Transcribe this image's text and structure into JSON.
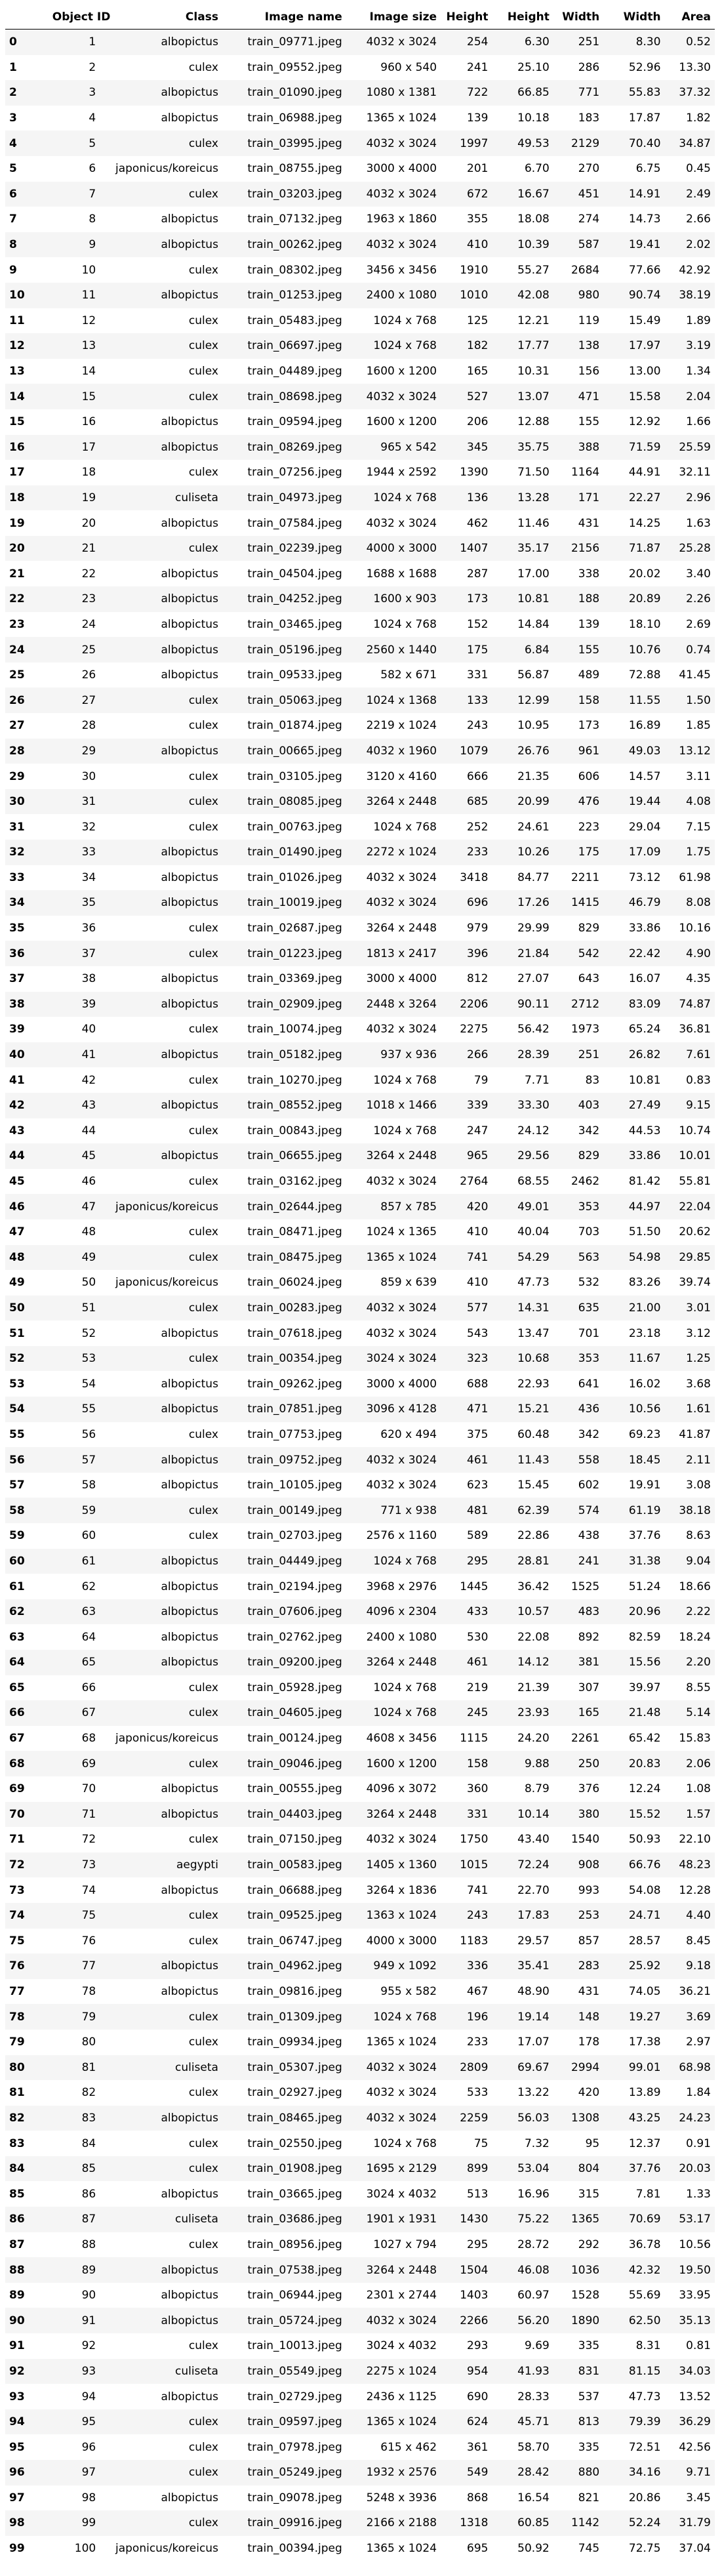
{
  "columns": [
    "",
    "Object ID",
    "Class",
    "Image name",
    "Image size",
    "Height",
    "Height",
    "Width",
    "Width",
    "Area"
  ],
  "rows": [
    [
      "0",
      "1",
      "albopictus",
      "train_09771.jpeg",
      "4032 x 3024",
      "254",
      "6.30",
      "251",
      "8.30",
      "0.52"
    ],
    [
      "1",
      "2",
      "culex",
      "train_09552.jpeg",
      "960 x 540",
      "241",
      "25.10",
      "286",
      "52.96",
      "13.30"
    ],
    [
      "2",
      "3",
      "albopictus",
      "train_01090.jpeg",
      "1080 x 1381",
      "722",
      "66.85",
      "771",
      "55.83",
      "37.32"
    ],
    [
      "3",
      "4",
      "albopictus",
      "train_06988.jpeg",
      "1365 x 1024",
      "139",
      "10.18",
      "183",
      "17.87",
      "1.82"
    ],
    [
      "4",
      "5",
      "culex",
      "train_03995.jpeg",
      "4032 x 3024",
      "1997",
      "49.53",
      "2129",
      "70.40",
      "34.87"
    ],
    [
      "5",
      "6",
      "japonicus/koreicus",
      "train_08755.jpeg",
      "3000 x 4000",
      "201",
      "6.70",
      "270",
      "6.75",
      "0.45"
    ],
    [
      "6",
      "7",
      "culex",
      "train_03203.jpeg",
      "4032 x 3024",
      "672",
      "16.67",
      "451",
      "14.91",
      "2.49"
    ],
    [
      "7",
      "8",
      "albopictus",
      "train_07132.jpeg",
      "1963 x 1860",
      "355",
      "18.08",
      "274",
      "14.73",
      "2.66"
    ],
    [
      "8",
      "9",
      "albopictus",
      "train_00262.jpeg",
      "4032 x 3024",
      "410",
      "10.39",
      "587",
      "19.41",
      "2.02"
    ],
    [
      "9",
      "10",
      "culex",
      "train_08302.jpeg",
      "3456 x 3456",
      "1910",
      "55.27",
      "2684",
      "77.66",
      "42.92"
    ],
    [
      "10",
      "11",
      "albopictus",
      "train_01253.jpeg",
      "2400 x 1080",
      "1010",
      "42.08",
      "980",
      "90.74",
      "38.19"
    ],
    [
      "11",
      "12",
      "culex",
      "train_05483.jpeg",
      "1024 x 768",
      "125",
      "12.21",
      "119",
      "15.49",
      "1.89"
    ],
    [
      "12",
      "13",
      "culex",
      "train_06697.jpeg",
      "1024 x 768",
      "182",
      "17.77",
      "138",
      "17.97",
      "3.19"
    ],
    [
      "13",
      "14",
      "culex",
      "train_04489.jpeg",
      "1600 x 1200",
      "165",
      "10.31",
      "156",
      "13.00",
      "1.34"
    ],
    [
      "14",
      "15",
      "culex",
      "train_08698.jpeg",
      "4032 x 3024",
      "527",
      "13.07",
      "471",
      "15.58",
      "2.04"
    ],
    [
      "15",
      "16",
      "albopictus",
      "train_09594.jpeg",
      "1600 x 1200",
      "206",
      "12.88",
      "155",
      "12.92",
      "1.66"
    ],
    [
      "16",
      "17",
      "albopictus",
      "train_08269.jpeg",
      "965 x 542",
      "345",
      "35.75",
      "388",
      "71.59",
      "25.59"
    ],
    [
      "17",
      "18",
      "culex",
      "train_07256.jpeg",
      "1944 x 2592",
      "1390",
      "71.50",
      "1164",
      "44.91",
      "32.11"
    ],
    [
      "18",
      "19",
      "culiseta",
      "train_04973.jpeg",
      "1024 x 768",
      "136",
      "13.28",
      "171",
      "22.27",
      "2.96"
    ],
    [
      "19",
      "20",
      "albopictus",
      "train_07584.jpeg",
      "4032 x 3024",
      "462",
      "11.46",
      "431",
      "14.25",
      "1.63"
    ],
    [
      "20",
      "21",
      "culex",
      "train_02239.jpeg",
      "4000 x 3000",
      "1407",
      "35.17",
      "2156",
      "71.87",
      "25.28"
    ],
    [
      "21",
      "22",
      "albopictus",
      "train_04504.jpeg",
      "1688 x 1688",
      "287",
      "17.00",
      "338",
      "20.02",
      "3.40"
    ],
    [
      "22",
      "23",
      "albopictus",
      "train_04252.jpeg",
      "1600 x 903",
      "173",
      "10.81",
      "188",
      "20.89",
      "2.26"
    ],
    [
      "23",
      "24",
      "albopictus",
      "train_03465.jpeg",
      "1024 x 768",
      "152",
      "14.84",
      "139",
      "18.10",
      "2.69"
    ],
    [
      "24",
      "25",
      "albopictus",
      "train_05196.jpeg",
      "2560 x 1440",
      "175",
      "6.84",
      "155",
      "10.76",
      "0.74"
    ],
    [
      "25",
      "26",
      "albopictus",
      "train_09533.jpeg",
      "582 x 671",
      "331",
      "56.87",
      "489",
      "72.88",
      "41.45"
    ],
    [
      "26",
      "27",
      "culex",
      "train_05063.jpeg",
      "1024 x 1368",
      "133",
      "12.99",
      "158",
      "11.55",
      "1.50"
    ],
    [
      "27",
      "28",
      "culex",
      "train_01874.jpeg",
      "2219 x 1024",
      "243",
      "10.95",
      "173",
      "16.89",
      "1.85"
    ],
    [
      "28",
      "29",
      "albopictus",
      "train_00665.jpeg",
      "4032 x 1960",
      "1079",
      "26.76",
      "961",
      "49.03",
      "13.12"
    ],
    [
      "29",
      "30",
      "culex",
      "train_03105.jpeg",
      "3120 x 4160",
      "666",
      "21.35",
      "606",
      "14.57",
      "3.11"
    ],
    [
      "30",
      "31",
      "culex",
      "train_08085.jpeg",
      "3264 x 2448",
      "685",
      "20.99",
      "476",
      "19.44",
      "4.08"
    ],
    [
      "31",
      "32",
      "culex",
      "train_00763.jpeg",
      "1024 x 768",
      "252",
      "24.61",
      "223",
      "29.04",
      "7.15"
    ],
    [
      "32",
      "33",
      "albopictus",
      "train_01490.jpeg",
      "2272 x 1024",
      "233",
      "10.26",
      "175",
      "17.09",
      "1.75"
    ],
    [
      "33",
      "34",
      "albopictus",
      "train_01026.jpeg",
      "4032 x 3024",
      "3418",
      "84.77",
      "2211",
      "73.12",
      "61.98"
    ],
    [
      "34",
      "35",
      "albopictus",
      "train_10019.jpeg",
      "4032 x 3024",
      "696",
      "17.26",
      "1415",
      "46.79",
      "8.08"
    ],
    [
      "35",
      "36",
      "culex",
      "train_02687.jpeg",
      "3264 x 2448",
      "979",
      "29.99",
      "829",
      "33.86",
      "10.16"
    ],
    [
      "36",
      "37",
      "culex",
      "train_01223.jpeg",
      "1813 x 2417",
      "396",
      "21.84",
      "542",
      "22.42",
      "4.90"
    ],
    [
      "37",
      "38",
      "albopictus",
      "train_03369.jpeg",
      "3000 x 4000",
      "812",
      "27.07",
      "643",
      "16.07",
      "4.35"
    ],
    [
      "38",
      "39",
      "albopictus",
      "train_02909.jpeg",
      "2448 x 3264",
      "2206",
      "90.11",
      "2712",
      "83.09",
      "74.87"
    ],
    [
      "39",
      "40",
      "culex",
      "train_10074.jpeg",
      "4032 x 3024",
      "2275",
      "56.42",
      "1973",
      "65.24",
      "36.81"
    ],
    [
      "40",
      "41",
      "albopictus",
      "train_05182.jpeg",
      "937 x 936",
      "266",
      "28.39",
      "251",
      "26.82",
      "7.61"
    ],
    [
      "41",
      "42",
      "culex",
      "train_10270.jpeg",
      "1024 x 768",
      "79",
      "7.71",
      "83",
      "10.81",
      "0.83"
    ],
    [
      "42",
      "43",
      "albopictus",
      "train_08552.jpeg",
      "1018 x 1466",
      "339",
      "33.30",
      "403",
      "27.49",
      "9.15"
    ],
    [
      "43",
      "44",
      "culex",
      "train_00843.jpeg",
      "1024 x 768",
      "247",
      "24.12",
      "342",
      "44.53",
      "10.74"
    ],
    [
      "44",
      "45",
      "albopictus",
      "train_06655.jpeg",
      "3264 x 2448",
      "965",
      "29.56",
      "829",
      "33.86",
      "10.01"
    ],
    [
      "45",
      "46",
      "culex",
      "train_03162.jpeg",
      "4032 x 3024",
      "2764",
      "68.55",
      "2462",
      "81.42",
      "55.81"
    ],
    [
      "46",
      "47",
      "japonicus/koreicus",
      "train_02644.jpeg",
      "857 x 785",
      "420",
      "49.01",
      "353",
      "44.97",
      "22.04"
    ],
    [
      "47",
      "48",
      "culex",
      "train_08471.jpeg",
      "1024 x 1365",
      "410",
      "40.04",
      "703",
      "51.50",
      "20.62"
    ],
    [
      "48",
      "49",
      "culex",
      "train_08475.jpeg",
      "1365 x 1024",
      "741",
      "54.29",
      "563",
      "54.98",
      "29.85"
    ],
    [
      "49",
      "50",
      "japonicus/koreicus",
      "train_06024.jpeg",
      "859 x 639",
      "410",
      "47.73",
      "532",
      "83.26",
      "39.74"
    ],
    [
      "50",
      "51",
      "culex",
      "train_00283.jpeg",
      "4032 x 3024",
      "577",
      "14.31",
      "635",
      "21.00",
      "3.01"
    ],
    [
      "51",
      "52",
      "albopictus",
      "train_07618.jpeg",
      "4032 x 3024",
      "543",
      "13.47",
      "701",
      "23.18",
      "3.12"
    ],
    [
      "52",
      "53",
      "culex",
      "train_00354.jpeg",
      "3024 x 3024",
      "323",
      "10.68",
      "353",
      "11.67",
      "1.25"
    ],
    [
      "53",
      "54",
      "albopictus",
      "train_09262.jpeg",
      "3000 x 4000",
      "688",
      "22.93",
      "641",
      "16.02",
      "3.68"
    ],
    [
      "54",
      "55",
      "albopictus",
      "train_07851.jpeg",
      "3096 x 4128",
      "471",
      "15.21",
      "436",
      "10.56",
      "1.61"
    ],
    [
      "55",
      "56",
      "culex",
      "train_07753.jpeg",
      "620 x 494",
      "375",
      "60.48",
      "342",
      "69.23",
      "41.87"
    ],
    [
      "56",
      "57",
      "albopictus",
      "train_09752.jpeg",
      "4032 x 3024",
      "461",
      "11.43",
      "558",
      "18.45",
      "2.11"
    ],
    [
      "57",
      "58",
      "albopictus",
      "train_10105.jpeg",
      "4032 x 3024",
      "623",
      "15.45",
      "602",
      "19.91",
      "3.08"
    ],
    [
      "58",
      "59",
      "culex",
      "train_00149.jpeg",
      "771 x 938",
      "481",
      "62.39",
      "574",
      "61.19",
      "38.18"
    ],
    [
      "59",
      "60",
      "culex",
      "train_02703.jpeg",
      "2576 x 1160",
      "589",
      "22.86",
      "438",
      "37.76",
      "8.63"
    ],
    [
      "60",
      "61",
      "albopictus",
      "train_04449.jpeg",
      "1024 x 768",
      "295",
      "28.81",
      "241",
      "31.38",
      "9.04"
    ],
    [
      "61",
      "62",
      "albopictus",
      "train_02194.jpeg",
      "3968 x 2976",
      "1445",
      "36.42",
      "1525",
      "51.24",
      "18.66"
    ],
    [
      "62",
      "63",
      "albopictus",
      "train_07606.jpeg",
      "4096 x 2304",
      "433",
      "10.57",
      "483",
      "20.96",
      "2.22"
    ],
    [
      "63",
      "64",
      "albopictus",
      "train_02762.jpeg",
      "2400 x 1080",
      "530",
      "22.08",
      "892",
      "82.59",
      "18.24"
    ],
    [
      "64",
      "65",
      "albopictus",
      "train_09200.jpeg",
      "3264 x 2448",
      "461",
      "14.12",
      "381",
      "15.56",
      "2.20"
    ],
    [
      "65",
      "66",
      "culex",
      "train_05928.jpeg",
      "1024 x 768",
      "219",
      "21.39",
      "307",
      "39.97",
      "8.55"
    ],
    [
      "66",
      "67",
      "culex",
      "train_04605.jpeg",
      "1024 x 768",
      "245",
      "23.93",
      "165",
      "21.48",
      "5.14"
    ],
    [
      "67",
      "68",
      "japonicus/koreicus",
      "train_00124.jpeg",
      "4608 x 3456",
      "1115",
      "24.20",
      "2261",
      "65.42",
      "15.83"
    ],
    [
      "68",
      "69",
      "culex",
      "train_09046.jpeg",
      "1600 x 1200",
      "158",
      "9.88",
      "250",
      "20.83",
      "2.06"
    ],
    [
      "69",
      "70",
      "albopictus",
      "train_00555.jpeg",
      "4096 x 3072",
      "360",
      "8.79",
      "376",
      "12.24",
      "1.08"
    ],
    [
      "70",
      "71",
      "albopictus",
      "train_04403.jpeg",
      "3264 x 2448",
      "331",
      "10.14",
      "380",
      "15.52",
      "1.57"
    ],
    [
      "71",
      "72",
      "culex",
      "train_07150.jpeg",
      "4032 x 3024",
      "1750",
      "43.40",
      "1540",
      "50.93",
      "22.10"
    ],
    [
      "72",
      "73",
      "aegypti",
      "train_00583.jpeg",
      "1405 x 1360",
      "1015",
      "72.24",
      "908",
      "66.76",
      "48.23"
    ],
    [
      "73",
      "74",
      "albopictus",
      "train_06688.jpeg",
      "3264 x 1836",
      "741",
      "22.70",
      "993",
      "54.08",
      "12.28"
    ],
    [
      "74",
      "75",
      "culex",
      "train_09525.jpeg",
      "1363 x 1024",
      "243",
      "17.83",
      "253",
      "24.71",
      "4.40"
    ],
    [
      "75",
      "76",
      "culex",
      "train_06747.jpeg",
      "4000 x 3000",
      "1183",
      "29.57",
      "857",
      "28.57",
      "8.45"
    ],
    [
      "76",
      "77",
      "albopictus",
      "train_04962.jpeg",
      "949 x 1092",
      "336",
      "35.41",
      "283",
      "25.92",
      "9.18"
    ],
    [
      "77",
      "78",
      "albopictus",
      "train_09816.jpeg",
      "955 x 582",
      "467",
      "48.90",
      "431",
      "74.05",
      "36.21"
    ],
    [
      "78",
      "79",
      "culex",
      "train_01309.jpeg",
      "1024 x 768",
      "196",
      "19.14",
      "148",
      "19.27",
      "3.69"
    ],
    [
      "79",
      "80",
      "culex",
      "train_09934.jpeg",
      "1365 x 1024",
      "233",
      "17.07",
      "178",
      "17.38",
      "2.97"
    ],
    [
      "80",
      "81",
      "culiseta",
      "train_05307.jpeg",
      "4032 x 3024",
      "2809",
      "69.67",
      "2994",
      "99.01",
      "68.98"
    ],
    [
      "81",
      "82",
      "culex",
      "train_02927.jpeg",
      "4032 x 3024",
      "533",
      "13.22",
      "420",
      "13.89",
      "1.84"
    ],
    [
      "82",
      "83",
      "albopictus",
      "train_08465.jpeg",
      "4032 x 3024",
      "2259",
      "56.03",
      "1308",
      "43.25",
      "24.23"
    ],
    [
      "83",
      "84",
      "culex",
      "train_02550.jpeg",
      "1024 x 768",
      "75",
      "7.32",
      "95",
      "12.37",
      "0.91"
    ],
    [
      "84",
      "85",
      "culex",
      "train_01908.jpeg",
      "1695 x 2129",
      "899",
      "53.04",
      "804",
      "37.76",
      "20.03"
    ],
    [
      "85",
      "86",
      "albopictus",
      "train_03665.jpeg",
      "3024 x 4032",
      "513",
      "16.96",
      "315",
      "7.81",
      "1.33"
    ],
    [
      "86",
      "87",
      "culiseta",
      "train_03686.jpeg",
      "1901 x 1931",
      "1430",
      "75.22",
      "1365",
      "70.69",
      "53.17"
    ],
    [
      "87",
      "88",
      "culex",
      "train_08956.jpeg",
      "1027 x 794",
      "295",
      "28.72",
      "292",
      "36.78",
      "10.56"
    ],
    [
      "88",
      "89",
      "albopictus",
      "train_07538.jpeg",
      "3264 x 2448",
      "1504",
      "46.08",
      "1036",
      "42.32",
      "19.50"
    ],
    [
      "89",
      "90",
      "albopictus",
      "train_06944.jpeg",
      "2301 x 2744",
      "1403",
      "60.97",
      "1528",
      "55.69",
      "33.95"
    ],
    [
      "90",
      "91",
      "albopictus",
      "train_05724.jpeg",
      "4032 x 3024",
      "2266",
      "56.20",
      "1890",
      "62.50",
      "35.13"
    ],
    [
      "91",
      "92",
      "culex",
      "train_10013.jpeg",
      "3024 x 4032",
      "293",
      "9.69",
      "335",
      "8.31",
      "0.81"
    ],
    [
      "92",
      "93",
      "culiseta",
      "train_05549.jpeg",
      "2275 x 1024",
      "954",
      "41.93",
      "831",
      "81.15",
      "34.03"
    ],
    [
      "93",
      "94",
      "albopictus",
      "train_02729.jpeg",
      "2436 x 1125",
      "690",
      "28.33",
      "537",
      "47.73",
      "13.52"
    ],
    [
      "94",
      "95",
      "culex",
      "train_09597.jpeg",
      "1365 x 1024",
      "624",
      "45.71",
      "813",
      "79.39",
      "36.29"
    ],
    [
      "95",
      "96",
      "culex",
      "train_07978.jpeg",
      "615 x 462",
      "361",
      "58.70",
      "335",
      "72.51",
      "42.56"
    ],
    [
      "96",
      "97",
      "culex",
      "train_05249.jpeg",
      "1932 x 2576",
      "549",
      "28.42",
      "880",
      "34.16",
      "9.71"
    ],
    [
      "97",
      "98",
      "albopictus",
      "train_09078.jpeg",
      "5248 x 3936",
      "868",
      "16.54",
      "821",
      "20.86",
      "3.45"
    ],
    [
      "98",
      "99",
      "culex",
      "train_09916.jpeg",
      "2166 x 2188",
      "1318",
      "60.85",
      "1142",
      "52.24",
      "31.79"
    ],
    [
      "99",
      "100",
      "japonicus/koreicus",
      "train_00394.jpeg",
      "1365 x 1024",
      "695",
      "50.92",
      "745",
      "72.75",
      "37.04"
    ]
  ]
}
